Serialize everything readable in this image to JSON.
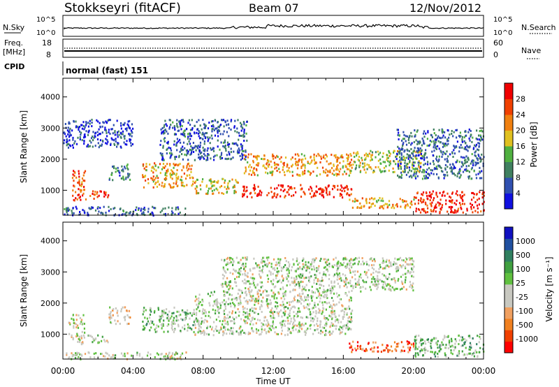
{
  "header": {
    "station": "Stokkseyri (fitACF)",
    "beam": "Beam 07",
    "date": "12/Nov/2012"
  },
  "top_panels": {
    "nsky_label": "N.Sky",
    "nsky_ticks": [
      "10^5",
      "10^0"
    ],
    "nsearch_label": "N.Search",
    "nsearch_ticks": [
      "10^5",
      "10^0"
    ],
    "freq_label": "Freq.",
    "freq_unit": "[MHz]",
    "freq_ticks": [
      "18",
      "8"
    ],
    "nave_label": "Nave",
    "nave_ticks": [
      "60",
      "0"
    ],
    "cpid_label": "CPID",
    "cpid_value": "normal (fast) 151"
  },
  "chart_data": [
    {
      "type": "heatmap",
      "name": "power",
      "ylabel": "Slant Range [km]",
      "ylim": [
        200,
        4600
      ],
      "yticks": [
        "4000",
        "3000",
        "2000",
        "1000"
      ],
      "colorbar_label": "Power [dB]",
      "colorbar_ticks": [
        "28",
        "24",
        "20",
        "16",
        "12",
        "8",
        "4"
      ],
      "colors": [
        "#1010e0",
        "#3050b0",
        "#408060",
        "#50b040",
        "#e0c020",
        "#f08010",
        "#f04000",
        "#f00000"
      ],
      "regions": [
        {
          "t": [
            0.5,
            1.3
          ],
          "r": [
            700,
            1700
          ],
          "v": 24
        },
        {
          "t": [
            1.5,
            2.6
          ],
          "r": [
            750,
            1000
          ],
          "v": 26
        },
        {
          "t": [
            2.6,
            3.8
          ],
          "r": [
            1350,
            1900
          ],
          "v": 10
        },
        {
          "t": [
            4.5,
            7.5
          ],
          "r": [
            1100,
            1900
          ],
          "v": 20
        },
        {
          "t": [
            7.5,
            10.0
          ],
          "r": [
            900,
            1400
          ],
          "v": 18
        },
        {
          "t": [
            10.2,
            16.5
          ],
          "r": [
            800,
            1200
          ],
          "v": 27
        },
        {
          "t": [
            10.3,
            16.5
          ],
          "r": [
            1500,
            2200
          ],
          "v": 20
        },
        {
          "t": [
            16.5,
            20.5
          ],
          "r": [
            1600,
            2300
          ],
          "v": 16
        },
        {
          "t": [
            16.3,
            20.0
          ],
          "r": [
            450,
            800
          ],
          "v": 20
        },
        {
          "t": [
            20.0,
            24.0
          ],
          "r": [
            300,
            1000
          ],
          "v": 27
        },
        {
          "t": [
            0.0,
            7.0
          ],
          "r": [
            220,
            500
          ],
          "v": 8
        },
        {
          "t": [
            0.0,
            4.0
          ],
          "r": [
            2400,
            3300
          ],
          "v": 6
        },
        {
          "t": [
            5.5,
            10.5
          ],
          "r": [
            2000,
            3300
          ],
          "v": 8
        },
        {
          "t": [
            19.0,
            24.0
          ],
          "r": [
            1400,
            3000
          ],
          "v": 9
        }
      ]
    },
    {
      "type": "heatmap",
      "name": "velocity",
      "ylabel": "Slant Range [km]",
      "xlabel": "Time UT",
      "ylim": [
        200,
        4600
      ],
      "yticks": [
        "4000",
        "3000",
        "2000",
        "1000"
      ],
      "xticks": [
        "00:00",
        "04:00",
        "08:00",
        "12:00",
        "16:00",
        "20:00",
        "00:00"
      ],
      "colorbar_label": "Velocity [m s⁻¹]",
      "colorbar_ticks": [
        "1000",
        "500",
        "100",
        "25",
        "-25",
        "-100",
        "-500",
        "-1000"
      ],
      "colors": [
        "#ff0000",
        "#f04000",
        "#f08020",
        "#f0a060",
        "#c8c8c0",
        "#c8c8c0",
        "#60c040",
        "#40a040",
        "#308060",
        "#2050a0",
        "#1010c0"
      ],
      "regions": [
        {
          "t": [
            0.3,
            1.2
          ],
          "r": [
            700,
            1700
          ],
          "v": -100
        },
        {
          "t": [
            1.3,
            2.6
          ],
          "r": [
            750,
            1000
          ],
          "v": 50
        },
        {
          "t": [
            2.6,
            3.8
          ],
          "r": [
            1350,
            1900
          ],
          "v": -200
        },
        {
          "t": [
            4.5,
            7.5
          ],
          "r": [
            1100,
            1900
          ],
          "v": 150
        },
        {
          "t": [
            7.5,
            16.5
          ],
          "r": [
            1000,
            2400
          ],
          "v": 0
        },
        {
          "t": [
            9.0,
            20.0
          ],
          "r": [
            2400,
            3500
          ],
          "v": 0
        },
        {
          "t": [
            16.3,
            20.0
          ],
          "r": [
            450,
            800
          ],
          "v": -600
        },
        {
          "t": [
            20.0,
            24.0
          ],
          "r": [
            300,
            1000
          ],
          "v": 200
        },
        {
          "t": [
            0.0,
            7.0
          ],
          "r": [
            220,
            450
          ],
          "v": -50
        }
      ]
    }
  ]
}
